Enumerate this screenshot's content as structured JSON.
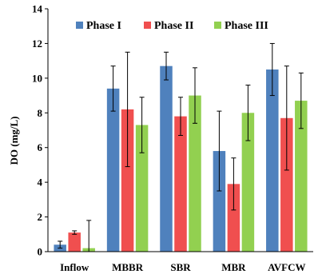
{
  "chart_data": {
    "type": "bar",
    "ylabel": "DO (mg/L)",
    "xlabel": "",
    "ylim": [
      0,
      14
    ],
    "yticks": [
      0,
      2,
      4,
      6,
      8,
      10,
      12,
      14
    ],
    "grid": false,
    "legend_position": "top",
    "categories": [
      "Inflow",
      "MBBR",
      "SBR",
      "MBR",
      "AVFCW"
    ],
    "series": [
      {
        "name": "Phase I",
        "color": "#4f81bd",
        "values": [
          0.4,
          9.4,
          10.7,
          5.8,
          10.5
        ],
        "errors": [
          0.2,
          1.3,
          0.8,
          2.3,
          1.5
        ]
      },
      {
        "name": "Phase II",
        "color": "#f04f4f",
        "values": [
          1.1,
          8.2,
          7.8,
          3.9,
          7.7
        ],
        "errors": [
          0.1,
          3.3,
          1.1,
          1.5,
          3.0
        ]
      },
      {
        "name": "Phase III",
        "color": "#92d050",
        "values": [
          0.2,
          7.3,
          9.0,
          8.0,
          8.7
        ],
        "errors": [
          1.6,
          1.6,
          1.6,
          1.6,
          1.6
        ]
      }
    ]
  }
}
